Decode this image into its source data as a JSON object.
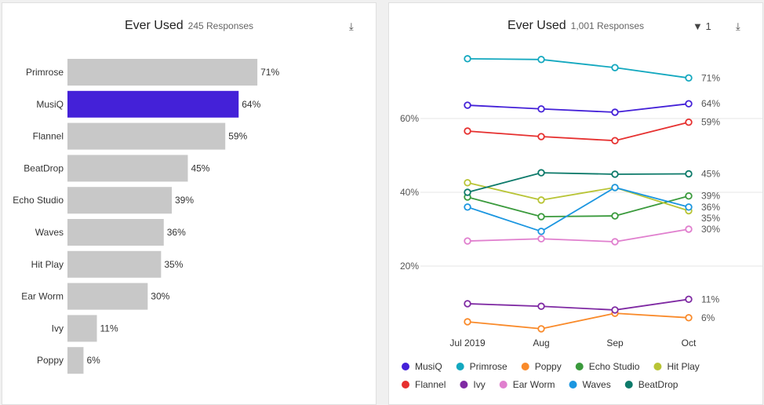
{
  "left_panel": {
    "title": "Ever Used",
    "responses": "245 Responses",
    "download_icon": "download-icon"
  },
  "right_panel": {
    "title": "Ever Used",
    "responses": "1,001 Responses",
    "filter_icon": "filter-icon",
    "filter_count": "1",
    "download_icon": "download-icon"
  },
  "chart_data": [
    {
      "type": "bar",
      "orientation": "horizontal",
      "categories": [
        "Primrose",
        "MusiQ",
        "Flannel",
        "BeatDrop",
        "Echo Studio",
        "Waves",
        "Hit Play",
        "Ear Worm",
        "Ivy",
        "Poppy"
      ],
      "values": [
        71,
        64,
        59,
        45,
        39,
        36,
        35,
        30,
        11,
        6
      ],
      "labels": [
        "71%",
        "64%",
        "59%",
        "45%",
        "39%",
        "36%",
        "35%",
        "30%",
        "11%",
        "6%"
      ],
      "highlight": "MusiQ",
      "highlight_color": "#4421d8",
      "bar_color": "#c8c8c8"
    },
    {
      "type": "line",
      "x": [
        "Jul 2019",
        "Aug",
        "Sep",
        "Oct"
      ],
      "yticks": [
        "20%",
        "40%",
        "60%"
      ],
      "ylim": [
        0,
        80
      ],
      "grid": true,
      "legend": "bottom",
      "series": [
        {
          "name": "MusiQ",
          "color": "#4421d8",
          "values": [
            63.6,
            62.6,
            61.7,
            64
          ],
          "end_label": "64%"
        },
        {
          "name": "Primrose",
          "color": "#13a8bf",
          "values": [
            76.2,
            76,
            73.8,
            71
          ],
          "end_label": "71%"
        },
        {
          "name": "Poppy",
          "color": "#f98a2a",
          "values": [
            4.9,
            3,
            7.2,
            6
          ],
          "end_label": "6%"
        },
        {
          "name": "Echo Studio",
          "color": "#3a9a3c",
          "values": [
            38.7,
            33.4,
            33.6,
            39
          ],
          "end_label": "39%"
        },
        {
          "name": "Hit Play",
          "color": "#b8c435",
          "values": [
            42.6,
            37.9,
            41.3,
            35
          ],
          "end_label": "35%"
        },
        {
          "name": "Flannel",
          "color": "#e6302f",
          "values": [
            56.6,
            55.1,
            54,
            59
          ],
          "end_label": "59%"
        },
        {
          "name": "Ivy",
          "color": "#7f2aa3",
          "values": [
            9.8,
            9.1,
            8.1,
            11
          ],
          "end_label": "11%"
        },
        {
          "name": "Ear Worm",
          "color": "#e07fce",
          "values": [
            26.8,
            27.4,
            26.6,
            30
          ],
          "end_label": "30%"
        },
        {
          "name": "Waves",
          "color": "#1b96e0",
          "values": [
            36,
            29.4,
            41.3,
            36
          ],
          "end_label": "36%"
        },
        {
          "name": "BeatDrop",
          "color": "#0d7a6a",
          "values": [
            40,
            45.3,
            44.9,
            45
          ],
          "end_label": "45%"
        }
      ]
    }
  ]
}
